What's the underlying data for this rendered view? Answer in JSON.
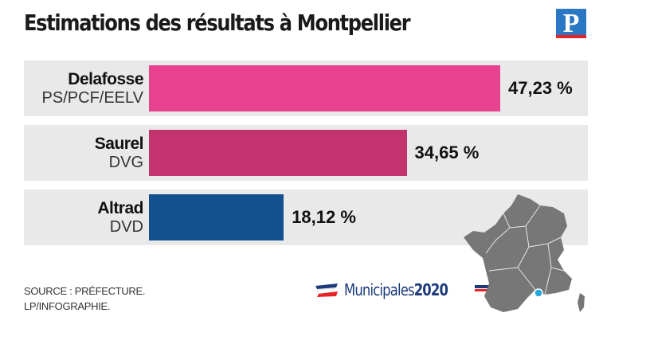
{
  "title": "Estimations des résultats à Montpellier",
  "logo_letter": "P",
  "chart_data": {
    "type": "bar",
    "orientation": "horizontal",
    "title": "Estimations des résultats à Montpellier",
    "categories": [
      "Delafosse",
      "Saurel",
      "Altrad"
    ],
    "subtitles": [
      "PS/PCF/EELV",
      "DVG",
      "DVD"
    ],
    "values": [
      47.23,
      34.65,
      18.12
    ],
    "value_labels": [
      "47,23 %",
      "34,65 %",
      "18,12 %"
    ],
    "colors": [
      "#e8418f",
      "#c3336d",
      "#11508c"
    ],
    "unit": "%"
  },
  "footer": {
    "source_line1": "SOURCE : PRÉFECTURE.",
    "source_line2": "LP/INFOGRAPHIE.",
    "brand_word": "Municipales",
    "brand_year": "2020"
  },
  "map": {
    "fill": "#777777",
    "marker": "#29a8e0"
  }
}
